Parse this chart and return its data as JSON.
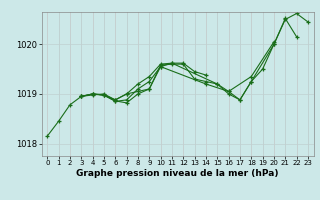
{
  "background_color": "#cce8e8",
  "plot_bg_color": "#cce8e8",
  "grid_color": "#b0c8c8",
  "line_color": "#1a6e1a",
  "marker_color": "#1a6e1a",
  "xlabel": "Graphe pression niveau de la mer (hPa)",
  "ylim": [
    1017.75,
    1020.65
  ],
  "xlim": [
    -0.5,
    23.5
  ],
  "yticks": [
    1018,
    1019,
    1020
  ],
  "xticks": [
    0,
    1,
    2,
    3,
    4,
    5,
    6,
    7,
    8,
    9,
    10,
    11,
    12,
    13,
    14,
    15,
    16,
    17,
    18,
    19,
    20,
    21,
    22,
    23
  ],
  "series_segments": [
    {
      "x": [
        0,
        1,
        2,
        3,
        4,
        5,
        6,
        7,
        8,
        9,
        10,
        11,
        12,
        13,
        14,
        15,
        16,
        17,
        18,
        19,
        20,
        21,
        22,
        23
      ],
      "y": [
        1018.15,
        1018.45,
        1018.78,
        1018.95,
        1018.98,
        1019.0,
        1018.88,
        1019.0,
        1019.05,
        1019.1,
        1019.58,
        1019.6,
        1019.6,
        1019.3,
        1019.25,
        1019.2,
        1019.0,
        1018.88,
        1019.25,
        1019.5,
        1020.0,
        1020.5,
        1020.62,
        1020.45
      ]
    },
    {
      "x": [
        3,
        4,
        5,
        6,
        7,
        8,
        9,
        10,
        14,
        16,
        18,
        20
      ],
      "y": [
        1018.95,
        1019.0,
        1018.98,
        1018.85,
        1018.88,
        1019.1,
        1019.25,
        1019.55,
        1019.2,
        1019.05,
        1019.35,
        1020.05
      ]
    },
    {
      "x": [
        3,
        4,
        5,
        6,
        7,
        8,
        9,
        10,
        11,
        12,
        13,
        14
      ],
      "y": [
        1018.95,
        1019.0,
        1018.98,
        1018.88,
        1019.0,
        1019.2,
        1019.35,
        1019.6,
        1019.62,
        1019.62,
        1019.45,
        1019.38
      ]
    },
    {
      "x": [
        3,
        4,
        5,
        6,
        7,
        8,
        9,
        10,
        11,
        15,
        16,
        17,
        18,
        20,
        21,
        22
      ],
      "y": [
        1018.95,
        1019.0,
        1018.97,
        1018.86,
        1018.82,
        1019.0,
        1019.1,
        1019.55,
        1019.62,
        1019.2,
        1019.05,
        1018.88,
        1019.25,
        1020.0,
        1020.52,
        1020.15
      ]
    }
  ]
}
